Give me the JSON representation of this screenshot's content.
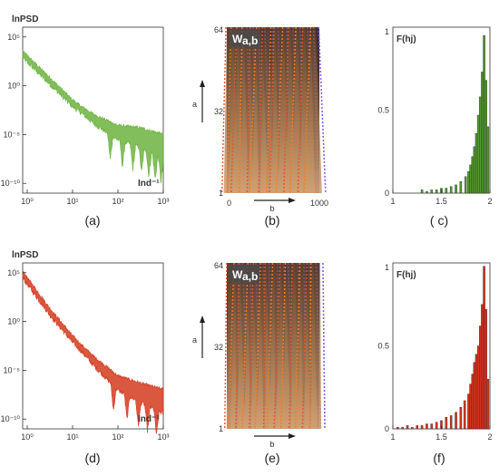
{
  "chart_data": [
    {
      "id": "a",
      "panel_label": "(a)",
      "type": "line",
      "scale": "log-log",
      "ylabel": "lnPSD",
      "xlabel": "Ind⁻¹",
      "x_ticks": [
        {
          "label": "10⁰",
          "v": 0
        },
        {
          "label": "10¹",
          "v": 1
        },
        {
          "label": "10²",
          "v": 2
        },
        {
          "label": "10³",
          "v": 3
        }
      ],
      "y_ticks": [
        {
          "label": "10⁵",
          "v": 5
        },
        {
          "label": "10⁰",
          "v": 0
        },
        {
          "label": "10⁻⁵",
          "v": -5
        },
        {
          "label": "10⁻¹⁰",
          "v": -10
        }
      ],
      "xlim_log10": [
        -0.1,
        3.0
      ],
      "ylim_log10": [
        -11,
        6
      ],
      "color": "#6db33f",
      "trend_log10": [
        [
          -0.1,
          3.2
        ],
        [
          0.5,
          0.5
        ],
        [
          1.0,
          -1.8
        ],
        [
          1.5,
          -3.5
        ],
        [
          2.0,
          -4.8
        ],
        [
          2.5,
          -5.3
        ],
        [
          3.0,
          -6.2
        ]
      ],
      "dips_log10": [
        1.83,
        2.1,
        2.33,
        2.52,
        2.68,
        2.82,
        2.95
      ]
    },
    {
      "id": "b",
      "panel_label": "(b)",
      "type": "heatmap",
      "title": "Wa,b",
      "ylabel": "a",
      "xlabel": "b",
      "x_ticks": [
        {
          "label": "0",
          "v": 0
        },
        {
          "label": "1000",
          "v": 1000
        }
      ],
      "y_ticks": [
        {
          "label": "64",
          "v": 64
        },
        {
          "label": "32",
          "v": 32
        },
        {
          "label": "1",
          "v": 1
        }
      ],
      "xlim": [
        0,
        1000
      ],
      "ylim": [
        1,
        64
      ],
      "ridges_b": [
        40,
        95,
        150,
        215,
        290,
        355,
        430,
        505,
        570,
        650,
        720,
        800,
        870,
        940
      ]
    },
    {
      "id": "c",
      "panel_label": "( c)",
      "type": "bar",
      "title": "F(hj)",
      "x_ticks": [
        {
          "label": "1",
          "v": 1
        },
        {
          "label": "1.5",
          "v": 1.5
        },
        {
          "label": "2",
          "v": 2
        }
      ],
      "y_ticks": [
        {
          "label": "1",
          "v": 1
        },
        {
          "label": "0.5",
          "v": 0.5
        },
        {
          "label": "0",
          "v": 0
        }
      ],
      "xlim": [
        1,
        2
      ],
      "ylim": [
        0,
        1
      ],
      "color": "#4f9a2e",
      "x": [
        1.3,
        1.35,
        1.4,
        1.45,
        1.5,
        1.55,
        1.6,
        1.65,
        1.7,
        1.75,
        1.78,
        1.8,
        1.82,
        1.84,
        1.86,
        1.88,
        1.9,
        1.92,
        1.94,
        1.96,
        1.98
      ],
      "values": [
        0.02,
        0.01,
        0.02,
        0.02,
        0.03,
        0.03,
        0.04,
        0.05,
        0.07,
        0.1,
        0.13,
        0.17,
        0.22,
        0.28,
        0.36,
        0.47,
        0.58,
        0.73,
        0.95,
        0.68,
        0.4
      ]
    },
    {
      "id": "d",
      "panel_label": "(d)",
      "type": "line",
      "scale": "log-log",
      "ylabel": "lnPSD",
      "xlabel": "Ind⁻¹",
      "x_ticks": [
        {
          "label": "10⁰",
          "v": 0
        },
        {
          "label": "10¹",
          "v": 1
        },
        {
          "label": "10²",
          "v": 2
        },
        {
          "label": "10³",
          "v": 3
        }
      ],
      "y_ticks": [
        {
          "label": "10⁵",
          "v": 5
        },
        {
          "label": "10⁰",
          "v": 0
        },
        {
          "label": "10⁻⁵",
          "v": -5
        },
        {
          "label": "10⁻¹⁰",
          "v": -10
        }
      ],
      "xlim_log10": [
        -0.1,
        3.0
      ],
      "ylim_log10": [
        -11,
        6
      ],
      "color": "#d43a1f",
      "trend_log10": [
        [
          -0.1,
          4.8
        ],
        [
          0.5,
          1.0
        ],
        [
          1.0,
          -1.8
        ],
        [
          1.5,
          -4.2
        ],
        [
          2.0,
          -6.3
        ],
        [
          2.5,
          -7.3
        ],
        [
          3.0,
          -8.2
        ]
      ],
      "dips_log10": [
        1.9,
        2.2,
        2.45,
        2.65,
        2.85
      ]
    },
    {
      "id": "e",
      "panel_label": "(e)",
      "type": "heatmap",
      "title": "Wa,b",
      "ylabel": "a",
      "xlabel": "b",
      "x_ticks": [],
      "y_ticks": [
        {
          "label": "64",
          "v": 64
        },
        {
          "label": "32",
          "v": 32
        },
        {
          "label": "1",
          "v": 1
        }
      ],
      "xlim": [
        0,
        1000
      ],
      "ylim": [
        1,
        64
      ],
      "ridges_b": [
        50,
        115,
        185,
        260,
        330,
        400,
        470,
        545,
        610,
        690,
        760,
        830,
        905,
        965
      ]
    },
    {
      "id": "f",
      "panel_label": "(f)",
      "type": "bar",
      "title": "F(hj)",
      "x_ticks": [
        {
          "label": "1",
          "v": 1
        },
        {
          "label": "1.5",
          "v": 1.5
        },
        {
          "label": "2",
          "v": 2
        }
      ],
      "y_ticks": [
        {
          "label": "1",
          "v": 1
        },
        {
          "label": "0.5",
          "v": 0.5
        },
        {
          "label": "0",
          "v": 0
        }
      ],
      "xlim": [
        1,
        2
      ],
      "ylim": [
        0,
        1
      ],
      "color": "#d9301b",
      "x": [
        1.05,
        1.1,
        1.15,
        1.2,
        1.25,
        1.3,
        1.35,
        1.4,
        1.45,
        1.5,
        1.55,
        1.6,
        1.65,
        1.7,
        1.74,
        1.78,
        1.8,
        1.82,
        1.84,
        1.86,
        1.88,
        1.9,
        1.92,
        1.94,
        1.96,
        1.98
      ],
      "values": [
        0.01,
        0.01,
        0.02,
        0.01,
        0.02,
        0.02,
        0.03,
        0.03,
        0.04,
        0.05,
        0.07,
        0.08,
        0.1,
        0.13,
        0.17,
        0.21,
        0.27,
        0.33,
        0.4,
        0.45,
        0.5,
        0.62,
        0.75,
        0.98,
        0.72,
        0.3
      ]
    }
  ]
}
